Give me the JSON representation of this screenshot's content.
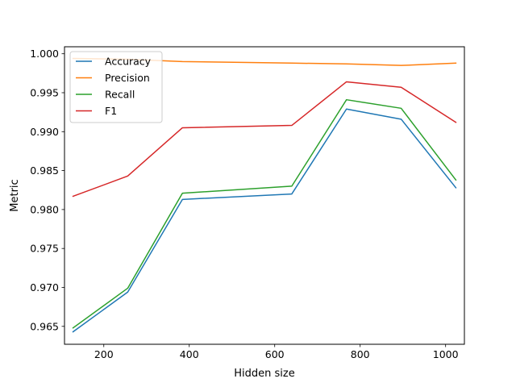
{
  "chart_data": {
    "type": "line",
    "title": "",
    "xlabel": "Hidden size",
    "ylabel": "Metric",
    "xlim": [
      108,
      1044
    ],
    "ylim": [
      0.9627,
      1.0009
    ],
    "xticks": [
      200,
      400,
      600,
      800,
      1000
    ],
    "yticks": [
      0.965,
      0.97,
      0.975,
      0.98,
      0.985,
      0.99,
      0.995,
      1.0
    ],
    "xtick_labels": [
      "200",
      "400",
      "600",
      "800",
      "1000"
    ],
    "ytick_labels": [
      "0.965",
      "0.970",
      "0.975",
      "0.980",
      "0.985",
      "0.990",
      "0.995",
      "1.000"
    ],
    "x": [
      128,
      256,
      384,
      640,
      768,
      896,
      1024
    ],
    "grid": false,
    "legend_position": "top-left",
    "series": [
      {
        "name": "Accuracy",
        "color": "#1f77b4",
        "values": [
          0.9643,
          0.9694,
          0.9813,
          0.982,
          0.9929,
          0.9916,
          0.9828
        ]
      },
      {
        "name": "Precision",
        "color": "#ff7f0e",
        "values": [
          0.9994,
          0.9993,
          0.999,
          0.9988,
          0.9987,
          0.9985,
          0.9988
        ]
      },
      {
        "name": "Recall",
        "color": "#2ca02c",
        "values": [
          0.9648,
          0.9699,
          0.9821,
          0.983,
          0.9941,
          0.993,
          0.9838
        ]
      },
      {
        "name": "F1",
        "color": "#d62728",
        "values": [
          0.9817,
          0.9843,
          0.9905,
          0.9908,
          0.9964,
          0.9957,
          0.9912
        ]
      }
    ]
  }
}
